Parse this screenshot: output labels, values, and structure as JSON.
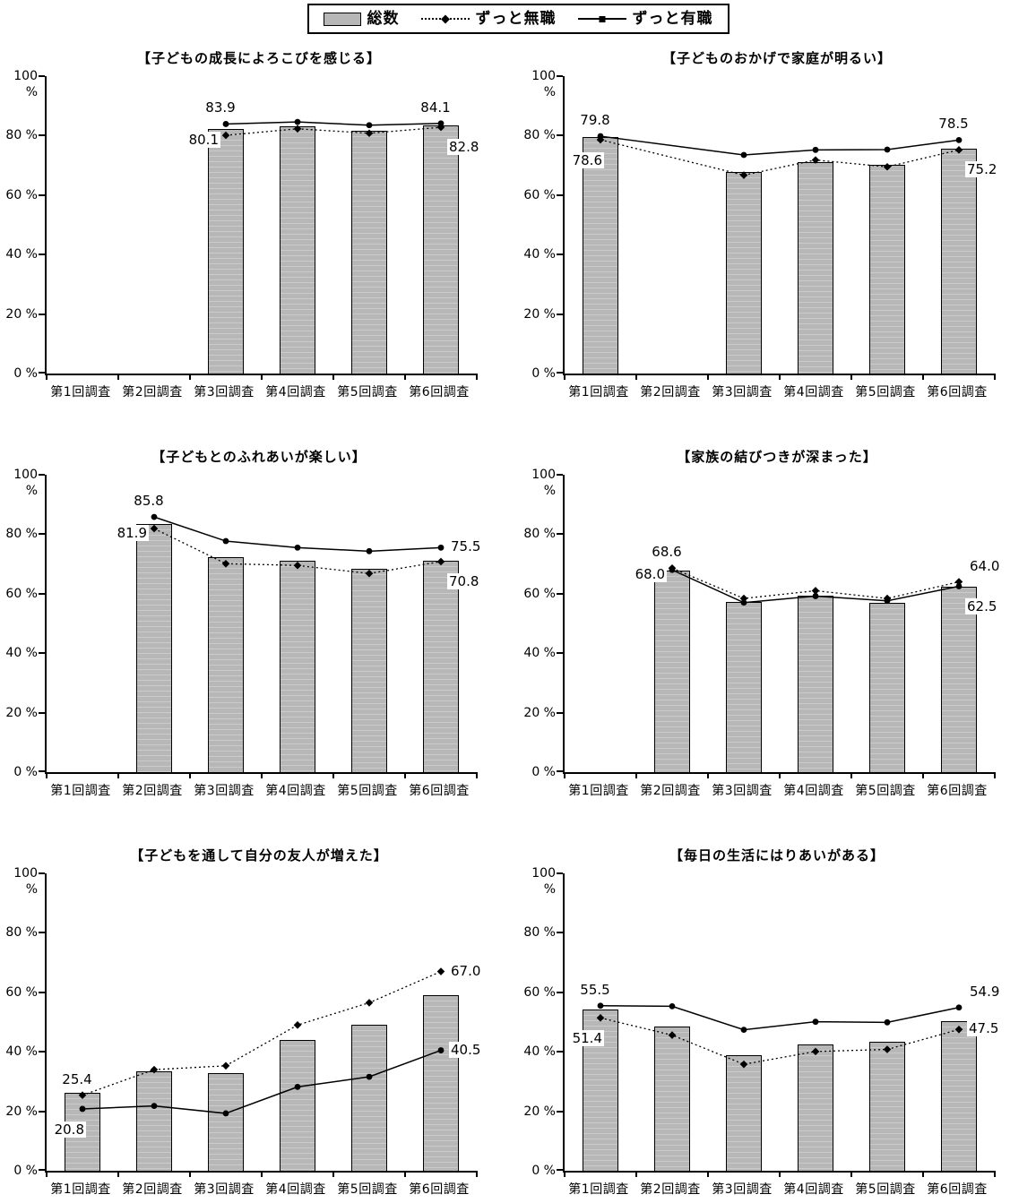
{
  "legend": {
    "position": "top",
    "items": [
      {
        "label": "総数",
        "type": "bar",
        "swatch_color": "#b7b7b7"
      },
      {
        "label": "ずっと無職",
        "type": "dotted-line",
        "marker": "diamond"
      },
      {
        "label": "ずっと有職",
        "type": "solid-line",
        "marker": "circle"
      }
    ]
  },
  "axis": {
    "y_ticks": [
      "100 %",
      "80 %",
      "60 %",
      "40 %",
      "20 %",
      "0 %"
    ],
    "ylim": [
      0,
      100
    ],
    "grid": "off"
  },
  "categories": [
    "第1回調査",
    "第2回調査",
    "第3回調査",
    "第4回調査",
    "第5回調査",
    "第6回調査"
  ],
  "colors": {
    "bar_fill": "#b7b7b7",
    "line": "#000000",
    "background": "#ffffff"
  },
  "chart_data": [
    {
      "type": "bar",
      "title": "【子どもの成長によろこびを感じる】",
      "ylim": [
        0,
        100
      ],
      "series": [
        {
          "name": "総数",
          "type": "bar",
          "values": [
            null,
            null,
            82.0,
            82.8,
            81.3,
            83.2
          ]
        },
        {
          "name": "ずっと無職",
          "type": "line-dotted",
          "marker": "diamond",
          "values": [
            null,
            null,
            80.1,
            82.3,
            80.8,
            82.8
          ]
        },
        {
          "name": "ずっと有職",
          "type": "line-solid",
          "marker": "circle",
          "values": [
            null,
            null,
            83.9,
            84.6,
            83.5,
            84.1
          ]
        }
      ],
      "point_labels": [
        {
          "series": "ずっと有職",
          "index": 2,
          "text": "83.9",
          "place": "above"
        },
        {
          "series": "ずっと無職",
          "index": 2,
          "text": "80.1",
          "place": "left"
        },
        {
          "series": "ずっと有職",
          "index": 5,
          "text": "84.1",
          "place": "above"
        },
        {
          "series": "ずっと無職",
          "index": 5,
          "text": "82.8",
          "place": "below-right"
        }
      ]
    },
    {
      "type": "bar",
      "title": "【子どものおかげで家庭が明るい】",
      "ylim": [
        0,
        100
      ],
      "series": [
        {
          "name": "総数",
          "type": "bar",
          "values": [
            79.2,
            null,
            67.6,
            70.8,
            69.8,
            75.4
          ]
        },
        {
          "name": "ずっと無職",
          "type": "line-dotted",
          "marker": "diamond",
          "values": [
            78.6,
            null,
            66.7,
            71.8,
            69.5,
            75.2
          ]
        },
        {
          "name": "ずっと有職",
          "type": "line-solid",
          "marker": "circle",
          "values": [
            79.8,
            null,
            73.5,
            75.2,
            75.3,
            78.5
          ]
        }
      ],
      "point_labels": [
        {
          "series": "ずっと有職",
          "index": 0,
          "text": "79.8",
          "place": "above"
        },
        {
          "series": "ずっと無職",
          "index": 0,
          "text": "78.6",
          "place": "below-left"
        },
        {
          "series": "ずっと有職",
          "index": 5,
          "text": "78.5",
          "place": "above"
        },
        {
          "series": "ずっと無職",
          "index": 5,
          "text": "75.2",
          "place": "below-right"
        }
      ]
    },
    {
      "type": "bar",
      "title": "【子どもとのふれあいが楽しい】",
      "ylim": [
        0,
        100
      ],
      "series": [
        {
          "name": "総数",
          "type": "bar",
          "values": [
            null,
            83.2,
            71.9,
            70.7,
            68.0,
            70.7
          ]
        },
        {
          "name": "ずっと無職",
          "type": "line-dotted",
          "marker": "diamond",
          "values": [
            null,
            81.9,
            70.1,
            69.5,
            66.8,
            70.8
          ]
        },
        {
          "name": "ずっと有職",
          "type": "line-solid",
          "marker": "circle",
          "values": [
            null,
            85.8,
            77.7,
            75.5,
            74.3,
            75.5
          ]
        }
      ],
      "point_labels": [
        {
          "series": "ずっと有職",
          "index": 1,
          "text": "85.8",
          "place": "above"
        },
        {
          "series": "ずっと無職",
          "index": 1,
          "text": "81.9",
          "place": "left"
        },
        {
          "series": "ずっと有職",
          "index": 5,
          "text": "75.5",
          "place": "right"
        },
        {
          "series": "ずっと無職",
          "index": 5,
          "text": "70.8",
          "place": "below-right"
        }
      ]
    },
    {
      "type": "bar",
      "title": "【家族の結びつきが深まった】",
      "ylim": [
        0,
        100
      ],
      "series": [
        {
          "name": "総数",
          "type": "bar",
          "values": [
            null,
            67.5,
            57.0,
            59.0,
            56.7,
            62.0
          ]
        },
        {
          "name": "ずっと無職",
          "type": "line-dotted",
          "marker": "diamond",
          "values": [
            null,
            68.6,
            58.4,
            61.0,
            58.4,
            64.0
          ]
        },
        {
          "name": "ずっと有職",
          "type": "line-solid",
          "marker": "circle",
          "values": [
            null,
            68.0,
            57.0,
            59.2,
            57.6,
            62.5
          ]
        }
      ],
      "point_labels": [
        {
          "series": "ずっと無職",
          "index": 1,
          "text": "68.6",
          "place": "above"
        },
        {
          "series": "ずっと有職",
          "index": 1,
          "text": "68.0",
          "place": "left"
        },
        {
          "series": "ずっと無職",
          "index": 5,
          "text": "64.0",
          "place": "above-right"
        },
        {
          "series": "ずっと有職",
          "index": 5,
          "text": "62.5",
          "place": "below-right"
        }
      ]
    },
    {
      "type": "bar",
      "title": "【子どもを通して自分の友人が増えた】",
      "ylim": [
        0,
        100
      ],
      "series": [
        {
          "name": "総数",
          "type": "bar",
          "values": [
            26.0,
            33.0,
            32.6,
            43.8,
            48.8,
            58.8
          ]
        },
        {
          "name": "ずっと無職",
          "type": "line-dotted",
          "marker": "diamond",
          "values": [
            25.4,
            34.0,
            35.3,
            49.0,
            56.5,
            67.0
          ]
        },
        {
          "name": "ずっと有職",
          "type": "line-solid",
          "marker": "circle",
          "values": [
            20.8,
            21.8,
            19.3,
            28.2,
            31.6,
            40.5
          ]
        }
      ],
      "point_labels": [
        {
          "series": "ずっと無職",
          "index": 0,
          "text": "25.4",
          "place": "above"
        },
        {
          "series": "ずっと有職",
          "index": 0,
          "text": "20.8",
          "place": "below-left"
        },
        {
          "series": "ずっと無職",
          "index": 5,
          "text": "67.0",
          "place": "right"
        },
        {
          "series": "ずっと有職",
          "index": 5,
          "text": "40.5",
          "place": "right"
        }
      ]
    },
    {
      "type": "bar",
      "title": "【毎日の生活にはりあいがある】",
      "ylim": [
        0,
        100
      ],
      "series": [
        {
          "name": "総数",
          "type": "bar",
          "values": [
            54.0,
            48.3,
            38.6,
            42.2,
            43.0,
            50.0
          ]
        },
        {
          "name": "ずっと無職",
          "type": "line-dotted",
          "marker": "diamond",
          "values": [
            51.4,
            45.6,
            35.8,
            40.1,
            40.8,
            47.5
          ]
        },
        {
          "name": "ずっと有職",
          "type": "line-solid",
          "marker": "circle",
          "values": [
            55.5,
            55.3,
            47.4,
            50.1,
            49.9,
            54.9
          ]
        }
      ],
      "point_labels": [
        {
          "series": "ずっと有職",
          "index": 0,
          "text": "55.5",
          "place": "above"
        },
        {
          "series": "ずっと無職",
          "index": 0,
          "text": "51.4",
          "place": "below-left"
        },
        {
          "series": "ずっと有職",
          "index": 5,
          "text": "54.9",
          "place": "above-right"
        },
        {
          "series": "ずっと無職",
          "index": 5,
          "text": "47.5",
          "place": "right"
        }
      ]
    }
  ]
}
